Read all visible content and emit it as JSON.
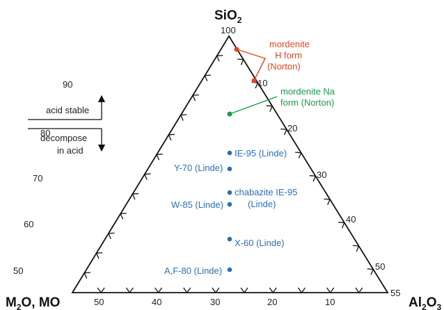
{
  "colors": {
    "red": "#e2451f",
    "green": "#1a9a4a",
    "blue": "#2a6fb8",
    "line": "#111111"
  },
  "vertices": {
    "top": "SiO",
    "top_sub": "2",
    "left": "M",
    "left_sub": "2",
    "left_rest": "O, MO",
    "right": "Al",
    "right_sub1": "2",
    "right_mid": "O",
    "right_sub2": "3"
  },
  "axes": {
    "top_value": "100",
    "right_end": "55",
    "left_edge_ticks": [
      "90",
      "80",
      "70",
      "60",
      "50"
    ],
    "right_edge_ticks": [
      "10",
      "20",
      "30",
      "40",
      "50"
    ],
    "bottom_edge_ticks": [
      "50",
      "40",
      "30",
      "20",
      "10"
    ]
  },
  "legend": {
    "acid_stable": "acid stable",
    "decompose_line1": "decompose",
    "decompose_line2": "in acid"
  },
  "points": {
    "mordenite_h": {
      "line1": "mordenite",
      "line2": "H form",
      "line3": "(Norton)"
    },
    "mordenite_na": {
      "line1": "mordenite Na",
      "line2": "form (Norton)"
    },
    "ie95": {
      "label": "IE-95 (Linde)"
    },
    "y70": {
      "label": "Y-70 (Linde)"
    },
    "chabazite": {
      "line1": "chabazite IE-95",
      "line2": "(Linde)"
    },
    "w85": {
      "label": "W-85 (Linde)"
    },
    "x60": {
      "label": "X-60 (Linde)"
    },
    "af80": {
      "label": "A,F-80 (Linde)"
    }
  }
}
